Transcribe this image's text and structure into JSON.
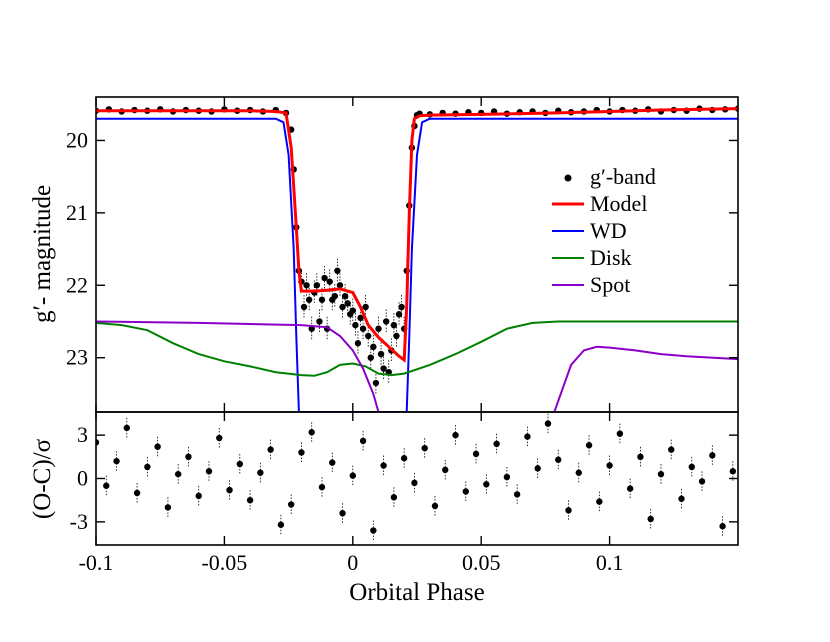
{
  "chart_data": {
    "type": "scatter",
    "xlabel": "Orbital Phase",
    "xlim": [
      -0.1,
      0.15
    ],
    "x_ticks": [
      -0.1,
      -0.05,
      0,
      0.05,
      0.1
    ],
    "x_tick_labels": [
      "-0.1",
      "-0.05",
      "0",
      "0.05",
      "0.1"
    ],
    "legend_position": "right",
    "panels": [
      {
        "name": "light-curve",
        "ylabel": "g′- magnitude",
        "ylim": [
          23.75,
          19.4
        ],
        "y_ticks": [
          20,
          21,
          22,
          23
        ],
        "y_tick_labels": [
          "20",
          "21",
          "22",
          "23"
        ],
        "series": [
          {
            "name": "g′-band",
            "style": "points",
            "color": "#000000",
            "x": [
              -0.1,
              -0.095,
              -0.09,
              -0.085,
              -0.08,
              -0.075,
              -0.07,
              -0.065,
              -0.06,
              -0.055,
              -0.05,
              -0.045,
              -0.04,
              -0.035,
              -0.03,
              -0.026,
              -0.024,
              -0.023,
              -0.022,
              -0.021,
              -0.02,
              -0.019,
              -0.018,
              -0.017,
              -0.016,
              -0.015,
              -0.014,
              -0.013,
              -0.012,
              -0.011,
              -0.01,
              -0.009,
              -0.008,
              -0.007,
              -0.006,
              -0.005,
              -0.004,
              -0.003,
              -0.002,
              -0.001,
              0,
              0.001,
              0.002,
              0.003,
              0.004,
              0.005,
              0.006,
              0.007,
              0.008,
              0.009,
              0.01,
              0.011,
              0.012,
              0.013,
              0.014,
              0.015,
              0.016,
              0.017,
              0.018,
              0.019,
              0.02,
              0.021,
              0.022,
              0.023,
              0.024,
              0.025,
              0.026,
              0.03,
              0.035,
              0.04,
              0.045,
              0.05,
              0.055,
              0.06,
              0.065,
              0.07,
              0.075,
              0.08,
              0.085,
              0.09,
              0.095,
              0.1,
              0.105,
              0.11,
              0.115,
              0.12,
              0.125,
              0.13,
              0.135,
              0.14,
              0.145,
              0.15
            ],
            "y": [
              19.59,
              19.57,
              19.6,
              19.58,
              19.59,
              19.57,
              19.6,
              19.58,
              19.59,
              19.6,
              19.57,
              19.59,
              19.58,
              19.6,
              19.58,
              19.62,
              19.85,
              20.4,
              21.2,
              21.8,
              21.95,
              22.3,
              22.0,
              22.2,
              22.6,
              22.1,
              22.0,
              22.5,
              22.2,
              21.9,
              22.6,
              21.95,
              22.2,
              22.15,
              21.8,
              22.0,
              22.3,
              22.15,
              22.25,
              22.4,
              22.35,
              22.55,
              22.8,
              22.45,
              22.6,
              22.3,
              22.7,
              23.0,
              22.85,
              23.35,
              22.6,
              22.95,
              23.15,
              22.5,
              23.2,
              22.9,
              22.55,
              22.7,
              22.4,
              22.3,
              22.6,
              21.8,
              20.9,
              20.1,
              19.8,
              19.65,
              19.63,
              19.64,
              19.62,
              19.63,
              19.61,
              19.62,
              19.6,
              19.63,
              19.61,
              19.6,
              19.62,
              19.59,
              19.61,
              19.6,
              19.58,
              19.6,
              19.58,
              19.59,
              19.57,
              19.6,
              19.58,
              19.59,
              19.56,
              19.58,
              19.57,
              19.56
            ]
          },
          {
            "name": "Model",
            "style": "line",
            "color": "#ff0000",
            "x": [
              -0.1,
              -0.08,
              -0.06,
              -0.04,
              -0.03,
              -0.026,
              -0.024,
              -0.022,
              -0.021,
              -0.02,
              -0.015,
              -0.01,
              -0.005,
              0,
              0.003,
              0.006,
              0.01,
              0.014,
              0.018,
              0.02,
              0.021,
              0.022,
              0.023,
              0.024,
              0.026,
              0.03,
              0.05,
              0.08,
              0.1,
              0.12,
              0.15
            ],
            "y": [
              19.59,
              19.59,
              19.59,
              19.59,
              19.6,
              19.62,
              20.1,
              21.2,
              21.8,
              22.08,
              22.08,
              22.07,
              22.05,
              22.1,
              22.3,
              22.55,
              22.72,
              22.85,
              22.98,
              23.03,
              22.3,
              21.0,
              20.0,
              19.7,
              19.66,
              19.65,
              19.64,
              19.62,
              19.6,
              19.58,
              19.56
            ]
          },
          {
            "name": "WD",
            "style": "line",
            "color": "#0000ff",
            "x": [
              -0.1,
              -0.03,
              -0.027,
              -0.025,
              -0.023,
              -0.022,
              -0.021,
              0.021,
              0.022,
              0.023,
              0.025,
              0.027,
              0.03,
              0.15
            ],
            "y": [
              19.7,
              19.7,
              19.75,
              20.2,
              21.5,
              22.7,
              23.75,
              23.75,
              22.7,
              21.5,
              20.2,
              19.75,
              19.7,
              19.7
            ]
          },
          {
            "name": "Disk",
            "style": "line",
            "color": "#008000",
            "x": [
              -0.1,
              -0.09,
              -0.08,
              -0.07,
              -0.06,
              -0.05,
              -0.04,
              -0.03,
              -0.02,
              -0.015,
              -0.01,
              -0.005,
              0,
              0.005,
              0.01,
              0.015,
              0.02,
              0.03,
              0.04,
              0.05,
              0.06,
              0.07,
              0.08,
              0.09,
              0.1,
              0.12,
              0.15
            ],
            "y": [
              22.52,
              22.55,
              22.62,
              22.8,
              22.95,
              23.05,
              23.12,
              23.2,
              23.24,
              23.25,
              23.2,
              23.1,
              23.08,
              23.12,
              23.22,
              23.24,
              23.22,
              23.1,
              22.95,
              22.78,
              22.6,
              22.52,
              22.5,
              22.5,
              22.5,
              22.5,
              22.5
            ],
            "style_detail": "solid"
          },
          {
            "name": "Spot",
            "style": "line",
            "color": "#8b00c8",
            "x": [
              -0.1,
              -0.06,
              -0.02,
              -0.01,
              -0.005,
              0,
              0.004,
              0.008,
              0.01,
              0.011,
              0.077,
              0.08,
              0.085,
              0.09,
              0.095,
              0.1,
              0.105,
              0.11,
              0.12,
              0.13,
              0.15
            ],
            "y": [
              22.5,
              22.52,
              22.55,
              22.58,
              22.7,
              22.9,
              23.15,
              23.5,
              23.75,
              23.9,
              23.9,
              23.6,
              23.1,
              22.9,
              22.85,
              22.86,
              22.88,
              22.9,
              22.95,
              22.98,
              23.02
            ]
          }
        ]
      },
      {
        "name": "residuals",
        "ylabel": "(O-C)/σ",
        "ylim": [
          -4.6,
          4.6
        ],
        "y_ticks": [
          3,
          0,
          -3
        ],
        "y_tick_labels": [
          "3",
          "0",
          "-3"
        ],
        "series": [
          {
            "name": "residuals",
            "style": "points",
            "color": "#000000",
            "x": [
              -0.1,
              -0.096,
              -0.092,
              -0.088,
              -0.084,
              -0.08,
              -0.076,
              -0.072,
              -0.068,
              -0.064,
              -0.06,
              -0.056,
              -0.052,
              -0.048,
              -0.044,
              -0.04,
              -0.036,
              -0.032,
              -0.028,
              -0.024,
              -0.02,
              -0.016,
              -0.012,
              -0.008,
              -0.004,
              0,
              0.004,
              0.008,
              0.012,
              0.016,
              0.02,
              0.024,
              0.028,
              0.032,
              0.036,
              0.04,
              0.044,
              0.048,
              0.052,
              0.056,
              0.06,
              0.064,
              0.068,
              0.072,
              0.076,
              0.08,
              0.084,
              0.088,
              0.092,
              0.096,
              0.1,
              0.104,
              0.108,
              0.112,
              0.116,
              0.12,
              0.124,
              0.128,
              0.132,
              0.136,
              0.14,
              0.144,
              0.148
            ],
            "y": [
              2.5,
              -0.5,
              1.2,
              3.5,
              -1.0,
              0.8,
              2.2,
              -2.0,
              0.3,
              1.5,
              -1.2,
              0.5,
              2.8,
              -0.8,
              1.0,
              -1.5,
              0.4,
              2.0,
              -3.2,
              -1.8,
              1.8,
              3.2,
              -0.6,
              1.1,
              -2.4,
              0.2,
              2.6,
              -3.6,
              0.9,
              -1.3,
              1.4,
              -0.3,
              2.1,
              -1.9,
              0.6,
              3.0,
              -0.9,
              1.7,
              -0.4,
              2.4,
              0.1,
              -1.1,
              2.9,
              0.7,
              3.8,
              1.3,
              -2.2,
              0.4,
              2.3,
              -1.6,
              0.9,
              3.1,
              -0.7,
              1.5,
              -2.8,
              0.3,
              2.0,
              -1.4,
              0.8,
              -0.2,
              1.6,
              -3.3,
              0.5
            ]
          }
        ]
      }
    ]
  },
  "legend": {
    "items": [
      {
        "label": "g′-band",
        "color": "#000000",
        "kind": "point"
      },
      {
        "label": "Model",
        "color": "#ff0000",
        "kind": "line"
      },
      {
        "label": "WD",
        "color": "#0000ff",
        "kind": "line"
      },
      {
        "label": "Disk",
        "color": "#008000",
        "kind": "line"
      },
      {
        "label": "Spot",
        "color": "#8b00c8",
        "kind": "line"
      }
    ]
  }
}
